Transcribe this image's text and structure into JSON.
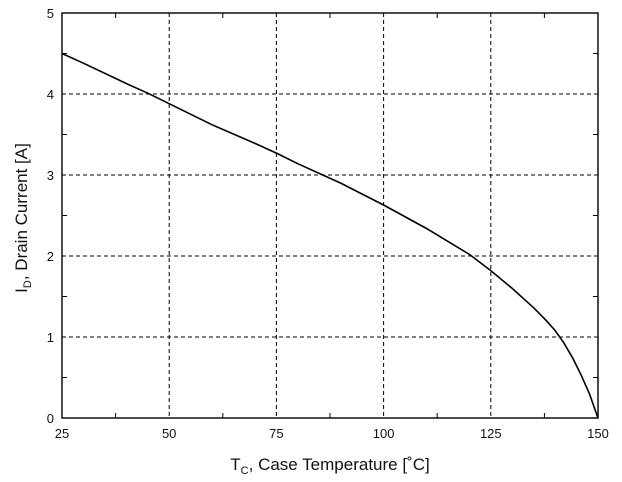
{
  "chart_data": {
    "type": "line",
    "x": [
      25,
      30,
      40,
      45,
      50,
      60,
      70,
      75,
      80,
      90,
      100,
      110,
      120,
      125,
      130,
      135,
      138,
      140,
      142,
      144,
      146,
      148,
      150
    ],
    "series": [
      {
        "values": [
          4.5,
          4.38,
          4.13,
          4.01,
          3.88,
          3.62,
          3.39,
          3.27,
          3.14,
          2.9,
          2.63,
          2.34,
          2.02,
          1.82,
          1.6,
          1.36,
          1.2,
          1.08,
          0.93,
          0.75,
          0.54,
          0.3,
          0.0
        ],
        "color": "#000000"
      }
    ],
    "xlim": [
      25,
      150
    ],
    "ylim": [
      0,
      5
    ],
    "xticks": [
      "25",
      "50",
      "75",
      "100",
      "125",
      "150"
    ],
    "yticks": [
      "0",
      "1",
      "2",
      "3",
      "4",
      "5"
    ],
    "xlabel_main": "T",
    "xlabel_sub": "C",
    "xlabel_rest": ", Case Temperature [˚C]",
    "ylabel_main": "I",
    "ylabel_sub": "D",
    "ylabel_rest": ", Drain Current [A]",
    "grid": true,
    "grid_style": "dashed"
  }
}
